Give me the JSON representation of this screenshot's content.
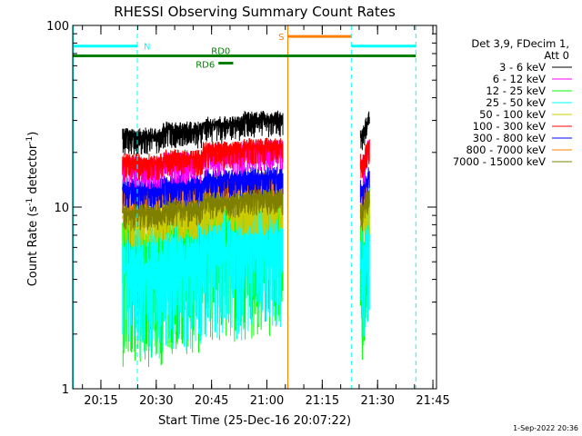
{
  "chart_data": {
    "type": "line",
    "title": "RHESSI Observing Summary Count Rates",
    "xlabel": "Start Time (25-Dec-16 20:07:22)",
    "ylabel_main": "Count Rate (s",
    "ylabel_sup": "-1",
    "ylabel_tail": " detector",
    "ylabel_end": ")",
    "y_scale": "log",
    "ylim": [
      1,
      100
    ],
    "xlim_minutes": [
      0,
      98.6
    ],
    "x_ticks": [
      "20:15",
      "20:30",
      "20:45",
      "21:00",
      "21:15",
      "21:30",
      "21:45"
    ],
    "x_tick_minutes": [
      7.63,
      22.63,
      37.63,
      52.63,
      67.63,
      82.63,
      97.63
    ],
    "y_ticks": [
      "1",
      "10",
      "100"
    ],
    "y_tick_values": [
      1,
      10,
      100
    ],
    "legend_header": [
      "Det 3,9, FDecim 1,",
      "Att 0"
    ],
    "timestamp": "1-Sep-2022 20:36",
    "markers": [
      {
        "label": "N",
        "start_min": 0,
        "end_min": 17.5,
        "y": 77,
        "color": "#00ffff"
      },
      {
        "label": "N",
        "start_min": 75.5,
        "end_min": 93,
        "y": 77,
        "color": "#00ffff"
      },
      {
        "label": "S",
        "start_min": 58.3,
        "end_min": 75.5,
        "y": 87,
        "color": "#ff8000"
      },
      {
        "label": "RD0",
        "start_min": 0,
        "end_min": 93,
        "y": 68,
        "color": "#008000"
      },
      {
        "label": "RD6",
        "start_min": 39.5,
        "end_min": 43.5,
        "y": 62,
        "color": "#008000"
      }
    ],
    "vertical_lines": [
      {
        "minute": 0.2,
        "color": "#00ffff",
        "style": "solid"
      },
      {
        "minute": 17.5,
        "color": "#00ffff",
        "style": "dashed"
      },
      {
        "minute": 58.3,
        "color": "#ff8000",
        "style": "solid"
      },
      {
        "minute": 75.5,
        "color": "#00ffff",
        "style": "dashed"
      },
      {
        "minute": 93.0,
        "color": "#00ffff",
        "style": "dashed"
      }
    ],
    "segments": [
      [
        13.5,
        57.0
      ],
      [
        78.0,
        80.5
      ]
    ],
    "series": [
      {
        "name": "3 - 6 keV",
        "color": "#000000",
        "levels": [
          25,
          27,
          29,
          31
        ],
        "noise": 0.05
      },
      {
        "name": "6 - 12 keV",
        "color": "#ff00ff",
        "levels": [
          17,
          18,
          20,
          21
        ],
        "noise": 0.06
      },
      {
        "name": "12 - 25 keV",
        "color": "#00ff00",
        "levels": [
          6.0,
          7.0,
          8.0,
          8.5
        ],
        "noise": 0.3
      },
      {
        "name": "25 - 50 keV",
        "color": "#00ffff",
        "levels": [
          5.0,
          5.5,
          6.5,
          7.0
        ],
        "noise": 0.25
      },
      {
        "name": "50 - 100 keV",
        "color": "#cccc00",
        "levels": [
          9.0,
          9.5,
          10.5,
          10.5
        ],
        "noise": 0.08
      },
      {
        "name": "100 - 300 keV",
        "color": "#ff0000",
        "levels": [
          18,
          19,
          21,
          22
        ],
        "noise": 0.05
      },
      {
        "name": "300 - 800 keV",
        "color": "#0000ff",
        "levels": [
          13,
          13.5,
          14.5,
          15
        ],
        "noise": 0.06
      },
      {
        "name": "800 - 7000 keV",
        "color": "#ff8000",
        "levels": [
          12,
          12.5,
          13.5,
          14
        ],
        "noise": 0.06
      },
      {
        "name": "7000 - 15000 keV",
        "color": "#808000",
        "levels": [
          9.5,
          10,
          11,
          11.5
        ],
        "noise": 0.05
      }
    ]
  }
}
